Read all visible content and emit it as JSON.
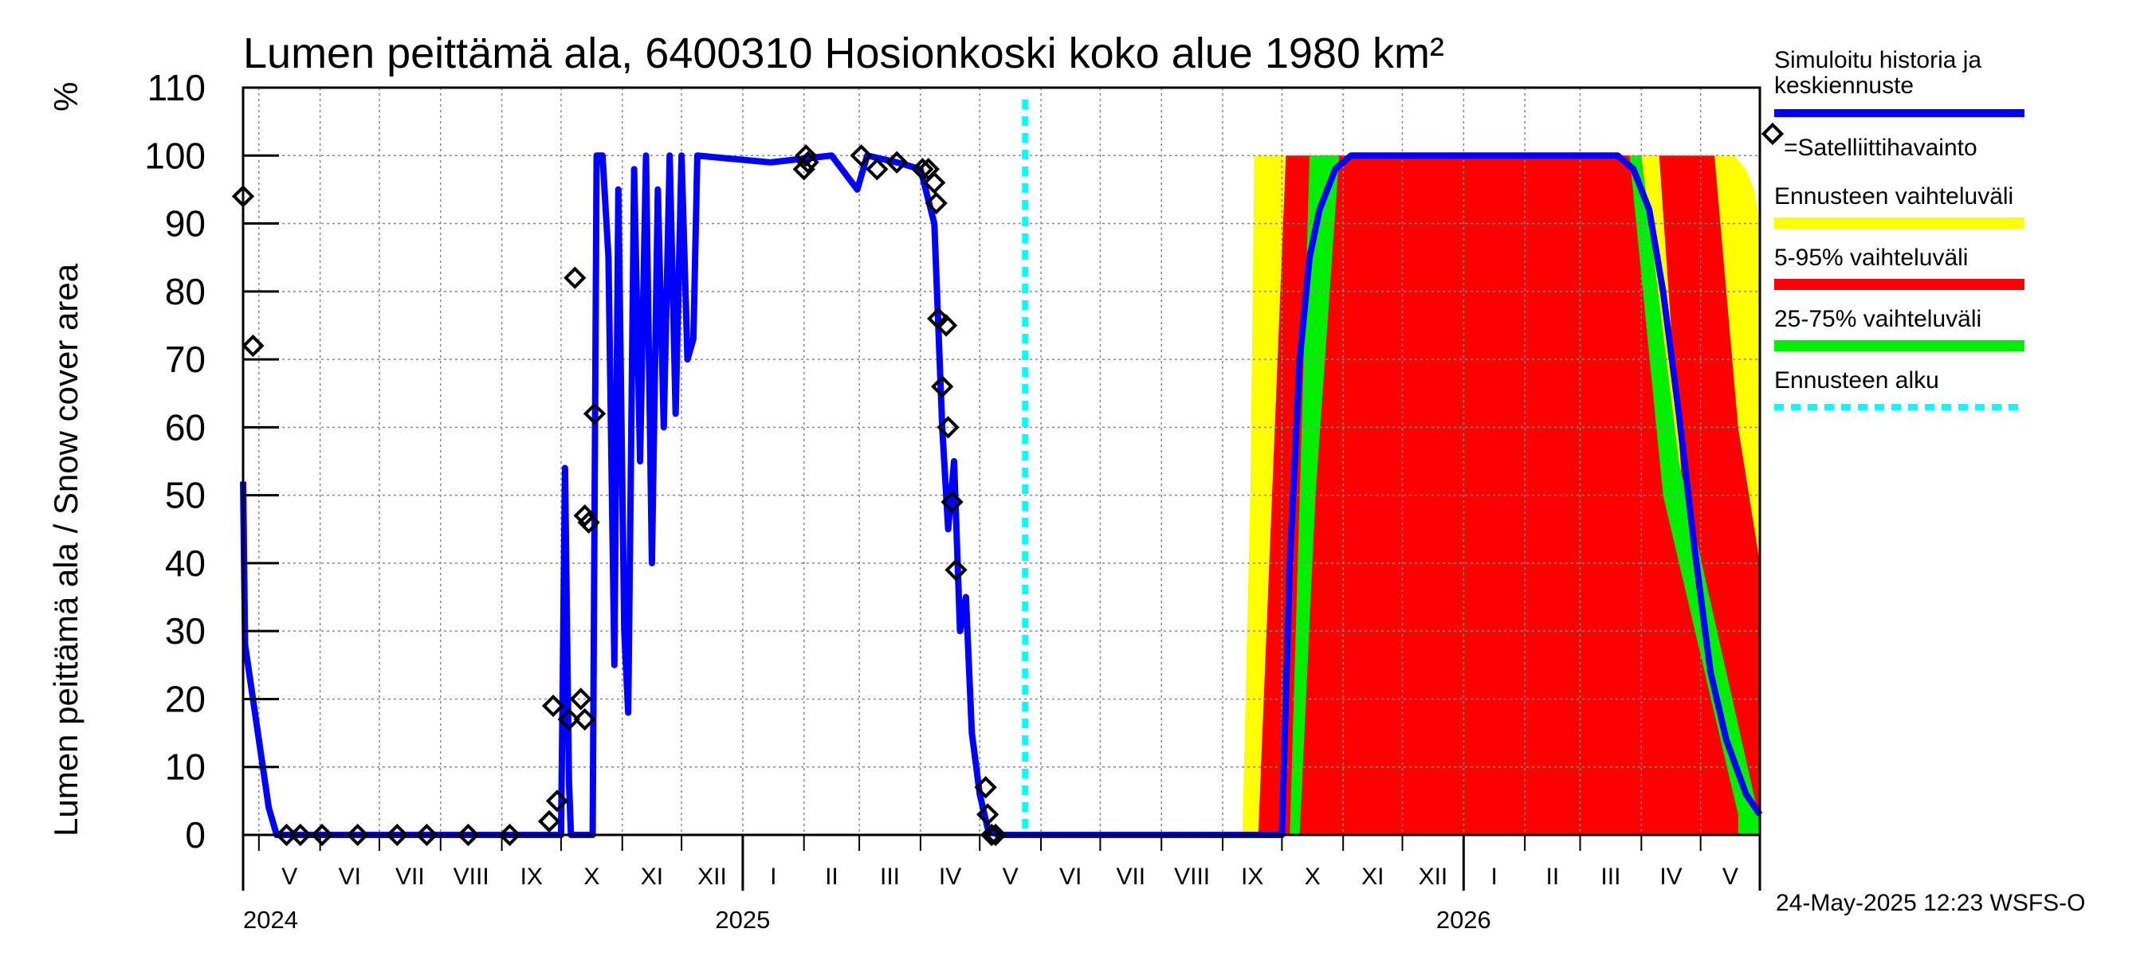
{
  "chart_data": {
    "type": "area",
    "title": "Lumen peittämä ala, 6400310 Hosionkoski koko alue 1980 km²",
    "ylabel": "Lumen peittämä ala / Snow cover area",
    "yunit": "%",
    "ylim": [
      0,
      110
    ],
    "yticks": [
      0,
      10,
      20,
      30,
      40,
      50,
      60,
      70,
      80,
      90,
      100,
      110
    ],
    "xlim": [
      "2024-04-23",
      "2026-05-31"
    ],
    "grid": true,
    "months": [
      {
        "label": "V",
        "start": "2024-05-01"
      },
      {
        "label": "VI",
        "start": "2024-06-01"
      },
      {
        "label": "VII",
        "start": "2024-07-01"
      },
      {
        "label": "VIII",
        "start": "2024-08-01"
      },
      {
        "label": "IX",
        "start": "2024-09-01"
      },
      {
        "label": "X",
        "start": "2024-10-01"
      },
      {
        "label": "XI",
        "start": "2024-11-01"
      },
      {
        "label": "XII",
        "start": "2024-12-01"
      },
      {
        "label": "I",
        "start": "2025-01-01"
      },
      {
        "label": "II",
        "start": "2025-02-01"
      },
      {
        "label": "III",
        "start": "2025-03-01"
      },
      {
        "label": "IV",
        "start": "2025-04-01"
      },
      {
        "label": "V",
        "start": "2025-05-01"
      },
      {
        "label": "VI",
        "start": "2025-06-01"
      },
      {
        "label": "VII",
        "start": "2025-07-01"
      },
      {
        "label": "VIII",
        "start": "2025-08-01"
      },
      {
        "label": "IX",
        "start": "2025-09-01"
      },
      {
        "label": "X",
        "start": "2025-10-01"
      },
      {
        "label": "XI",
        "start": "2025-11-01"
      },
      {
        "label": "XII",
        "start": "2025-12-01"
      },
      {
        "label": "I",
        "start": "2026-01-01"
      },
      {
        "label": "II",
        "start": "2026-02-01"
      },
      {
        "label": "III",
        "start": "2026-03-01"
      },
      {
        "label": "IV",
        "start": "2026-04-01"
      },
      {
        "label": "V",
        "start": "2026-05-01"
      }
    ],
    "years": [
      {
        "label": "2024",
        "date": "2024-04-23"
      },
      {
        "label": "2025",
        "date": "2025-01-01"
      },
      {
        "label": "2026",
        "date": "2026-01-01"
      }
    ],
    "forecast_start": "2025-05-24",
    "legend": {
      "placement": "right",
      "simulated": "Simuloitu historia ja keskiennuste",
      "simulated_line1": "Simuloitu historia ja",
      "simulated_line2": "keskiennuste",
      "satellite": "=Satelliittihavainto",
      "range": "Ennusteen vaihteluväli",
      "p5_95": "5-95% vaihteluväli",
      "p25_75": "25-75% vaihteluväli",
      "forecast_start": "Ennusteen alku"
    },
    "colors": {
      "simulated": "#0000ff",
      "range": "#ffff00",
      "p5_95": "#ff0000",
      "p25_75": "#00ee00",
      "forecast_start": "#00ffff",
      "satellite": "#000000",
      "grid": "#888888"
    },
    "series": [
      {
        "name": "Simuloitu historia ja keskiennuste",
        "kind": "line",
        "points": [
          [
            "2024-04-23",
            52
          ],
          [
            "2024-04-24",
            28
          ],
          [
            "2024-04-27",
            22
          ],
          [
            "2024-05-02",
            12
          ],
          [
            "2024-05-06",
            4
          ],
          [
            "2024-05-10",
            0
          ],
          [
            "2024-10-01",
            0
          ],
          [
            "2024-10-03",
            54
          ],
          [
            "2024-10-05",
            8
          ],
          [
            "2024-10-06",
            0
          ],
          [
            "2024-10-17",
            0
          ],
          [
            "2024-10-19",
            100
          ],
          [
            "2024-10-22",
            100
          ],
          [
            "2024-10-25",
            85
          ],
          [
            "2024-10-28",
            25
          ],
          [
            "2024-10-30",
            95
          ],
          [
            "2024-11-02",
            30
          ],
          [
            "2024-11-04",
            18
          ],
          [
            "2024-11-07",
            98
          ],
          [
            "2024-11-10",
            55
          ],
          [
            "2024-11-13",
            100
          ],
          [
            "2024-11-16",
            40
          ],
          [
            "2024-11-19",
            95
          ],
          [
            "2024-11-22",
            60
          ],
          [
            "2024-11-25",
            100
          ],
          [
            "2024-11-28",
            62
          ],
          [
            "2024-12-01",
            100
          ],
          [
            "2024-12-04",
            70
          ],
          [
            "2024-12-07",
            73
          ],
          [
            "2024-12-09",
            100
          ],
          [
            "2025-01-15",
            99
          ],
          [
            "2025-02-15",
            100
          ],
          [
            "2025-02-28",
            95
          ],
          [
            "2025-03-05",
            100
          ],
          [
            "2025-03-20",
            99
          ],
          [
            "2025-04-01",
            98
          ],
          [
            "2025-04-08",
            90
          ],
          [
            "2025-04-12",
            60
          ],
          [
            "2025-04-15",
            45
          ],
          [
            "2025-04-18",
            55
          ],
          [
            "2025-04-21",
            30
          ],
          [
            "2025-04-24",
            35
          ],
          [
            "2025-04-27",
            15
          ],
          [
            "2025-05-01",
            6
          ],
          [
            "2025-05-05",
            1
          ],
          [
            "2025-05-10",
            0
          ],
          [
            "2025-09-25",
            0
          ],
          [
            "2025-10-01",
            0
          ],
          [
            "2025-10-05",
            40
          ],
          [
            "2025-10-10",
            70
          ],
          [
            "2025-10-15",
            85
          ],
          [
            "2025-10-20",
            92
          ],
          [
            "2025-10-28",
            98
          ],
          [
            "2025-11-05",
            100
          ],
          [
            "2026-03-20",
            100
          ],
          [
            "2026-03-28",
            98
          ],
          [
            "2026-04-05",
            92
          ],
          [
            "2026-04-12",
            80
          ],
          [
            "2026-04-20",
            62
          ],
          [
            "2026-04-28",
            42
          ],
          [
            "2026-05-06",
            24
          ],
          [
            "2026-05-14",
            14
          ],
          [
            "2026-05-24",
            6
          ],
          [
            "2026-05-31",
            3
          ]
        ]
      },
      {
        "name": "Ennusteen vaihteluväli",
        "kind": "band",
        "rise": [
          [
            "2025-09-11",
            0
          ],
          [
            "2025-09-15",
            50
          ],
          [
            "2025-09-17",
            100
          ]
        ],
        "fall": [
          [
            "2026-05-18",
            100
          ],
          [
            "2026-05-24",
            98
          ],
          [
            "2026-05-28",
            95
          ],
          [
            "2026-05-31",
            90
          ]
        ]
      },
      {
        "name": "5-95% vaihteluväli",
        "kind": "band",
        "rise": [
          [
            "2025-09-19",
            0
          ],
          [
            "2025-09-26",
            50
          ],
          [
            "2025-10-03",
            100
          ]
        ],
        "rise_late": [
          [
            "2025-10-28",
            0
          ],
          [
            "2025-11-03",
            50
          ],
          [
            "2025-11-10",
            100
          ]
        ],
        "fall_early": [
          [
            "2026-04-10",
            100
          ],
          [
            "2026-04-22",
            50
          ],
          [
            "2026-05-02",
            2
          ]
        ],
        "fall": [
          [
            "2026-05-08",
            100
          ],
          [
            "2026-05-20",
            60
          ],
          [
            "2026-05-31",
            40
          ]
        ]
      },
      {
        "name": "25-75% vaihteluväli",
        "kind": "band",
        "rise": [
          [
            "2025-10-05",
            0
          ],
          [
            "2025-10-10",
            50
          ],
          [
            "2025-10-15",
            100
          ]
        ],
        "rise_late": [
          [
            "2025-10-10",
            0
          ],
          [
            "2025-10-18",
            50
          ],
          [
            "2025-10-30",
            100
          ]
        ],
        "fall_early": [
          [
            "2026-03-26",
            100
          ],
          [
            "2026-04-12",
            50
          ],
          [
            "2026-05-20",
            3
          ]
        ],
        "fall": [
          [
            "2026-04-01",
            100
          ],
          [
            "2026-04-20",
            55
          ],
          [
            "2026-05-31",
            2
          ]
        ]
      },
      {
        "name": "=Satelliittihavainto",
        "kind": "scatter",
        "points": [
          [
            "2024-04-23",
            94
          ],
          [
            "2024-04-28",
            72
          ],
          [
            "2024-05-15",
            0
          ],
          [
            "2024-05-22",
            0
          ],
          [
            "2024-06-02",
            0
          ],
          [
            "2024-06-20",
            0
          ],
          [
            "2024-07-10",
            0
          ],
          [
            "2024-07-25",
            0
          ],
          [
            "2024-08-15",
            0
          ],
          [
            "2024-09-05",
            0
          ],
          [
            "2024-09-25",
            2
          ],
          [
            "2024-09-27",
            19
          ],
          [
            "2024-09-29",
            5
          ],
          [
            "2024-10-05",
            17
          ],
          [
            "2024-10-08",
            82
          ],
          [
            "2024-10-11",
            20
          ],
          [
            "2024-10-13",
            17
          ],
          [
            "2024-10-13",
            47
          ],
          [
            "2024-10-15",
            46
          ],
          [
            "2024-10-18",
            62
          ],
          [
            "2025-02-01",
            98
          ],
          [
            "2025-02-02",
            100
          ],
          [
            "2025-02-03",
            99
          ],
          [
            "2025-03-02",
            100
          ],
          [
            "2025-03-10",
            98
          ],
          [
            "2025-03-20",
            99
          ],
          [
            "2025-04-02",
            98
          ],
          [
            "2025-04-05",
            98
          ],
          [
            "2025-04-08",
            96
          ],
          [
            "2025-04-09",
            93
          ],
          [
            "2025-04-10",
            76
          ],
          [
            "2025-04-12",
            66
          ],
          [
            "2025-04-14",
            75
          ],
          [
            "2025-04-15",
            60
          ],
          [
            "2025-04-17",
            49
          ],
          [
            "2025-04-19",
            39
          ],
          [
            "2025-05-04",
            7
          ],
          [
            "2025-05-05",
            3
          ],
          [
            "2025-05-07",
            0
          ],
          [
            "2025-05-09",
            0
          ]
        ]
      }
    ],
    "timestamp": "24-May-2025 12:23 WSFS-O"
  }
}
